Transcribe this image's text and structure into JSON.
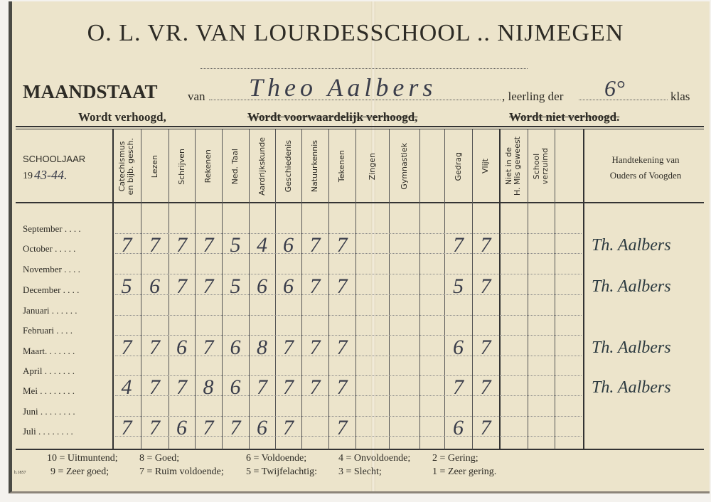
{
  "header": {
    "school": "O. L. VR. VAN LOURDESSCHOOL .. NIJMEGEN",
    "maandstaat": "MAANDSTAAT",
    "van": "van",
    "student_name": "Theo Aalbers",
    "leerling_der": ", leerling der",
    "klas_value": "6°",
    "klas": "klas",
    "status_options": [
      {
        "label": "Wordt verhoogd,",
        "struck": false
      },
      {
        "label": "Wordt voorwaardelijk verhoogd,",
        "struck": true
      },
      {
        "label": "Wordt niet verhoogd.",
        "struck": true
      }
    ]
  },
  "table": {
    "schooljaar_label": "SCHOOLJAAR",
    "schooljaar_prefix": "19",
    "schooljaar_value": "43-44.",
    "columns": [
      "Catechismus\nen bijb. gesch.",
      "Lezen",
      "Schrijven",
      "Rekenen",
      "Ned. Taal",
      "Aardrijkskunde",
      "Geschiedenis",
      "Natuurkennis",
      "Tekenen",
      "Zingen",
      "Gymnastiek",
      "",
      "Gedrag",
      "Vlijt",
      "Niet in de\nH. Mis geweest",
      "School\nverzuimd",
      ""
    ],
    "signature_header": "Handtekening van\nOuders of Voogden",
    "rows": [
      {
        "month": "September . . . .",
        "grades": [],
        "signature": ""
      },
      {
        "month": "October . . . . .",
        "grades": [
          "7",
          "7",
          "7",
          "7",
          "5",
          "4",
          "6",
          "7",
          "7",
          "",
          "",
          "",
          "7",
          "7",
          "",
          "",
          ""
        ],
        "signature": "Th. Aalbers"
      },
      {
        "month": "November . . . .",
        "grades": [],
        "signature": ""
      },
      {
        "month": "December . . . .",
        "grades": [
          "5",
          "6",
          "7",
          "7",
          "5",
          "6",
          "6",
          "7",
          "7",
          "",
          "",
          "",
          "5",
          "7",
          "",
          "",
          ""
        ],
        "signature": "Th. Aalbers"
      },
      {
        "month": "Januari . . . . . .",
        "grades": [],
        "signature": ""
      },
      {
        "month": "Februari . . . .",
        "grades": [],
        "signature": ""
      },
      {
        "month": "Maart. . . . . . .",
        "grades": [
          "7",
          "7",
          "6",
          "7",
          "6",
          "8",
          "7",
          "7",
          "7",
          "",
          "",
          "",
          "6",
          "7",
          "",
          "",
          ""
        ],
        "signature": "Th. Aalbers"
      },
      {
        "month": "April . . . . . . .",
        "grades": [],
        "signature": ""
      },
      {
        "month": "Mei . . . . . . . .",
        "grades": [
          "4",
          "7",
          "7",
          "8",
          "6",
          "7",
          "7",
          "7",
          "7",
          "",
          "",
          "",
          "7",
          "7",
          "",
          "",
          ""
        ],
        "signature": "Th. Aalbers"
      },
      {
        "month": "Juni . . . . . . . .",
        "grades": [],
        "signature": ""
      },
      {
        "month": "Juli . . . . . . . .",
        "grades": [
          "7",
          "7",
          "6",
          "7",
          "7",
          "6",
          "7",
          "",
          "7",
          "",
          "",
          "",
          "6",
          "7",
          "",
          "",
          ""
        ],
        "signature": ""
      }
    ]
  },
  "legend": {
    "row1": [
      "10 = Uitmuntend;",
      "8 = Goed;",
      "6 = Voldoende;",
      "4 = Onvoldoende;",
      "2 = Gering;"
    ],
    "row2": [
      "9 = Zeer goed;",
      "7 = Ruim voldoende;",
      "5 = Twijfelachtig:",
      "3 = Slecht;",
      "1 = Zeer gering."
    ],
    "print_code": "h.1857"
  }
}
